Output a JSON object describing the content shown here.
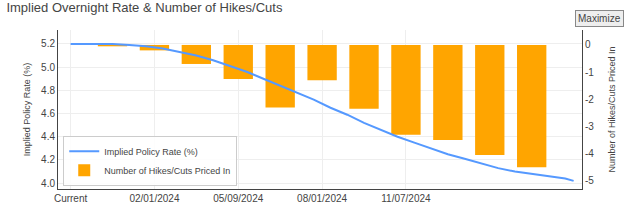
{
  "chart_data": {
    "type": "line",
    "title": "Implied Overnight Rate & Number of Hikes/Cuts",
    "ylabel": "Implied Policy Rate (%)",
    "y2label": "Number of Hikes/Cuts Priced In",
    "xlim": [
      -0.3,
      12.2
    ],
    "xticks": [
      {
        "value": 0,
        "label": "Current"
      },
      {
        "value": 2,
        "label": "02/01/2024"
      },
      {
        "value": 4,
        "label": "05/09/2024"
      },
      {
        "value": 6,
        "label": "08/01/2024"
      },
      {
        "value": 8,
        "label": "11/07/2024"
      }
    ],
    "ylim": [
      3.95,
      5.32
    ],
    "yticks": [
      {
        "value": 4.0,
        "label": "4.0"
      },
      4.2,
      4.4,
      4.6,
      4.8,
      {
        "value": 5.0,
        "label": "5.0"
      },
      5.2
    ],
    "y2lim": [
      -5.3,
      0.55
    ],
    "y2ticks": [
      0,
      -1,
      -2,
      -3,
      -4,
      -5
    ],
    "grid": true,
    "legend": "lower left",
    "annotations": [
      "Maximize"
    ],
    "series": [
      {
        "name": "Implied Policy Rate (%)",
        "type": "line",
        "color": "#5599ff",
        "x": [
          0,
          0.3,
          0.6,
          1.0,
          1.4,
          1.8,
          2.2,
          2.6,
          3.0,
          3.4,
          3.8,
          4.2,
          4.6,
          5.0,
          5.4,
          5.8,
          6.2,
          6.6,
          7.0,
          7.4,
          7.8,
          8.2,
          8.6,
          9.0,
          9.4,
          9.8,
          10.2,
          10.6,
          11.0,
          11.4,
          11.8,
          12
        ],
        "values": [
          5.2,
          5.2,
          5.2,
          5.2,
          5.19,
          5.18,
          5.16,
          5.13,
          5.1,
          5.06,
          5.01,
          4.96,
          4.9,
          4.84,
          4.78,
          4.72,
          4.65,
          4.59,
          4.52,
          4.46,
          4.4,
          4.35,
          4.3,
          4.25,
          4.21,
          4.17,
          4.13,
          4.1,
          4.08,
          4.06,
          4.04,
          4.02
        ]
      },
      {
        "name": "Number of Hikes/Cuts Priced In",
        "type": "bar",
        "axis": "y2",
        "color": "#FFA500",
        "x": [
          1,
          2,
          3,
          4,
          5,
          6,
          7,
          8,
          9,
          10,
          11
        ],
        "values": [
          -0.05,
          -0.2,
          -0.7,
          -1.25,
          -2.3,
          -1.3,
          -2.35,
          -3.3,
          -3.5,
          -4.05,
          -4.5
        ]
      }
    ]
  }
}
